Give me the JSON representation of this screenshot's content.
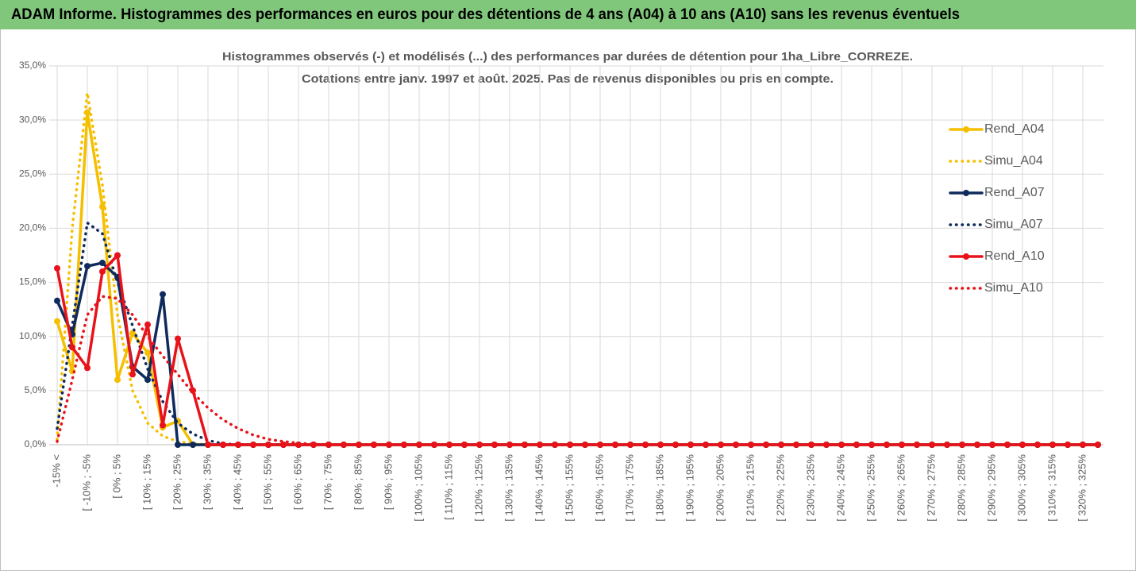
{
  "header": {
    "title": "ADAM Informe. Histogrammes des performances en euros pour des détentions de 4 ans (A04) à 10 ans (A10) sans les revenus éventuels"
  },
  "chart_data": {
    "type": "line",
    "title": "Histogrammes observés (-) et modélisés (...) des performances par durées de détention pour 1ha_Libre_CORREZE.",
    "subtitle": "Cotations entre janv. 1997 et août. 2025. Pas de revenus disponibles ou pris en compte.",
    "categories": [
      "-15% <",
      null,
      "[ -10% ; -5%",
      null,
      "[ 0% ; 5%",
      null,
      "[ 10% ; 15%",
      null,
      "[ 20% ; 25%",
      null,
      "[ 30% ; 35%",
      null,
      "[ 40% ; 45%",
      null,
      "[ 50% ; 55%",
      null,
      "[ 60% ; 65%",
      null,
      "[ 70% ; 75%",
      null,
      "[ 80% ; 85%",
      null,
      "[ 90% ; 95%",
      null,
      "[ 100% ; 105%",
      null,
      "[ 110% ; 115%",
      null,
      "[ 120% ; 125%",
      null,
      "[ 130% ; 135%",
      null,
      "[ 140% ; 145%",
      null,
      "[ 150% ; 155%",
      null,
      "[ 160% ; 165%",
      null,
      "[ 170% ; 175%",
      null,
      "[ 180% ; 185%",
      null,
      "[ 190% ; 195%",
      null,
      "[ 200% ; 205%",
      null,
      "[ 210% ; 215%",
      null,
      "[ 220% ; 225%",
      null,
      "[ 230% ; 235%",
      null,
      "[ 240% ; 245%",
      null,
      "[ 250% ; 255%",
      null,
      "[ 260% ; 265%",
      null,
      "[ 270% ; 275%",
      null,
      "[ 280% ; 285%",
      null,
      "[ 290% ; 295%",
      null,
      "[ 300% ; 305%",
      null,
      "[ 310% ; 315%",
      null,
      "[ 320% ; 325%",
      null
    ],
    "series": [
      {
        "name": "Rend_A04",
        "color": "#f5bf00",
        "style": "solid",
        "markers": true,
        "values": [
          11.4,
          6.8,
          30.7,
          22.0,
          6.0,
          10.3,
          8.5,
          1.6,
          2.2,
          0,
          0,
          0,
          0,
          0,
          0,
          0,
          0,
          0,
          0,
          0,
          0,
          0,
          0,
          0,
          0,
          0,
          0,
          0,
          0,
          0,
          0,
          0,
          0,
          0,
          0,
          0,
          0,
          0,
          0,
          0,
          0,
          0,
          0,
          0,
          0,
          0,
          0,
          0,
          0,
          0,
          0,
          0,
          0,
          0,
          0,
          0,
          0,
          0,
          0,
          0,
          0,
          0,
          0,
          0,
          0,
          0,
          0,
          0,
          0,
          0
        ]
      },
      {
        "name": "Simu_A04",
        "color": "#f5bf00",
        "style": "dotted",
        "markers": false,
        "values": [
          0.5,
          20.0,
          32.5,
          24.0,
          12.0,
          5.0,
          2.0,
          0.8,
          0.3,
          0.1,
          0,
          0,
          0,
          0,
          0,
          0,
          0,
          0,
          0,
          0,
          0,
          0,
          0,
          0,
          0,
          0,
          0,
          0,
          0,
          0,
          0,
          0,
          0,
          0,
          0,
          0,
          0,
          0,
          0,
          0,
          0,
          0,
          0,
          0,
          0,
          0,
          0,
          0,
          0,
          0,
          0,
          0,
          0,
          0,
          0,
          0,
          0,
          0,
          0,
          0,
          0,
          0,
          0,
          0,
          0,
          0,
          0,
          0,
          0,
          0
        ]
      },
      {
        "name": "Rend_A07",
        "color": "#0f2a5c",
        "style": "solid",
        "markers": true,
        "values": [
          13.3,
          10.2,
          16.5,
          16.8,
          15.5,
          7.2,
          6.0,
          13.9,
          0,
          0,
          0,
          0,
          0,
          0,
          0,
          0,
          0,
          0,
          0,
          0,
          0,
          0,
          0,
          0,
          0,
          0,
          0,
          0,
          0,
          0,
          0,
          0,
          0,
          0,
          0,
          0,
          0,
          0,
          0,
          0,
          0,
          0,
          0,
          0,
          0,
          0,
          0,
          0,
          0,
          0,
          0,
          0,
          0,
          0,
          0,
          0,
          0,
          0,
          0,
          0,
          0,
          0,
          0,
          0,
          0,
          0,
          0,
          0,
          0,
          0
        ]
      },
      {
        "name": "Simu_A07",
        "color": "#0f2a5c",
        "style": "dotted",
        "markers": false,
        "values": [
          1.5,
          11.0,
          20.5,
          19.5,
          15.0,
          11.0,
          7.0,
          4.0,
          2.0,
          1.0,
          0.4,
          0.1,
          0,
          0,
          0,
          0,
          0,
          0,
          0,
          0,
          0,
          0,
          0,
          0,
          0,
          0,
          0,
          0,
          0,
          0,
          0,
          0,
          0,
          0,
          0,
          0,
          0,
          0,
          0,
          0,
          0,
          0,
          0,
          0,
          0,
          0,
          0,
          0,
          0,
          0,
          0,
          0,
          0,
          0,
          0,
          0,
          0,
          0,
          0,
          0,
          0,
          0,
          0,
          0,
          0,
          0,
          0,
          0,
          0,
          0
        ]
      },
      {
        "name": "Rend_A10",
        "color": "#e8121a",
        "style": "solid",
        "markers": true,
        "values": [
          16.3,
          9.0,
          7.1,
          16.0,
          17.5,
          6.5,
          11.1,
          1.8,
          9.8,
          5.0,
          0,
          0,
          0,
          0,
          0,
          0,
          0,
          0,
          0,
          0,
          0,
          0,
          0,
          0,
          0,
          0,
          0,
          0,
          0,
          0,
          0,
          0,
          0,
          0,
          0,
          0,
          0,
          0,
          0,
          0,
          0,
          0,
          0,
          0,
          0,
          0,
          0,
          0,
          0,
          0,
          0,
          0,
          0,
          0,
          0,
          0,
          0,
          0,
          0,
          0,
          0,
          0,
          0,
          0,
          0,
          0,
          0,
          0,
          0,
          0
        ]
      },
      {
        "name": "Simu_A10",
        "color": "#e8121a",
        "style": "dotted",
        "markers": false,
        "values": [
          0.3,
          6.0,
          12.0,
          13.7,
          13.5,
          12.0,
          10.0,
          8.2,
          6.5,
          4.8,
          3.4,
          2.3,
          1.5,
          0.9,
          0.5,
          0.3,
          0.15,
          0.05,
          0,
          0,
          0,
          0,
          0,
          0,
          0,
          0,
          0,
          0,
          0,
          0,
          0,
          0,
          0,
          0,
          0,
          0,
          0,
          0,
          0,
          0,
          0,
          0,
          0,
          0,
          0,
          0,
          0,
          0,
          0,
          0,
          0,
          0,
          0,
          0,
          0,
          0,
          0,
          0,
          0,
          0,
          0,
          0,
          0,
          0,
          0,
          0,
          0,
          0,
          0,
          0
        ]
      }
    ],
    "ylim": [
      0,
      35
    ],
    "yticks": [
      {
        "value": 0,
        "label": "0,0%"
      },
      {
        "value": 5,
        "label": "5,0%"
      },
      {
        "value": 10,
        "label": "10,0%"
      },
      {
        "value": 15,
        "label": "15,0%"
      },
      {
        "value": 20,
        "label": "20,0%"
      },
      {
        "value": 25,
        "label": "25,0%"
      },
      {
        "value": 30,
        "label": "30,0%"
      },
      {
        "value": 35,
        "label": "35,0%"
      }
    ],
    "grid": true,
    "legend": "right"
  }
}
